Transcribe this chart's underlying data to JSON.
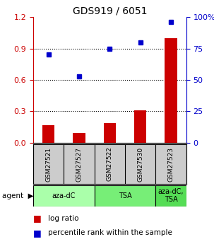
{
  "title": "GDS919 / 6051",
  "categories": [
    "GSM27521",
    "GSM27527",
    "GSM27522",
    "GSM27530",
    "GSM27523"
  ],
  "log_ratio": [
    0.17,
    0.09,
    0.19,
    0.31,
    1.0
  ],
  "percentile_rank_pct": [
    70,
    53,
    75,
    80,
    96
  ],
  "bar_color": "#cc0000",
  "dot_color": "#0000cc",
  "left_ylim": [
    0,
    1.2
  ],
  "right_ylim": [
    0,
    100
  ],
  "left_yticks": [
    0,
    0.3,
    0.6,
    0.9,
    1.2
  ],
  "right_yticks": [
    0,
    25,
    50,
    75,
    100
  ],
  "groups": [
    {
      "label": "aza-dC",
      "indices": [
        0,
        1
      ],
      "color": "#aaffaa"
    },
    {
      "label": "TSA",
      "indices": [
        2,
        3
      ],
      "color": "#77ee77"
    },
    {
      "label": "aza-dC,\nTSA",
      "indices": [
        4
      ],
      "color": "#55dd55"
    }
  ],
  "legend_bar_label": "log ratio",
  "legend_dot_label": "percentile rank within the sample",
  "bg_color": "#ffffff",
  "plot_bg_color": "#ffffff",
  "sample_label_bg": "#cccccc"
}
